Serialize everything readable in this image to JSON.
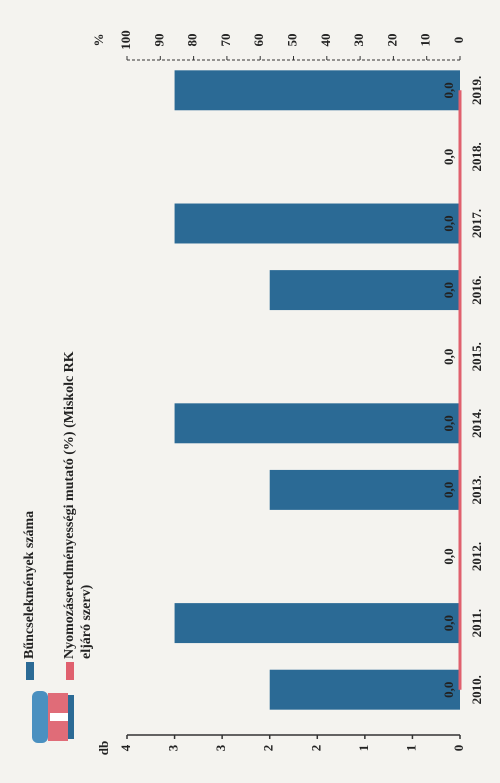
{
  "chart_data": {
    "type": "bar",
    "categories": [
      "2010.",
      "2011.",
      "2012.",
      "2013.",
      "2014.",
      "2015.",
      "2016.",
      "2017.",
      "2018.",
      "2019."
    ],
    "series": [
      {
        "name": "Bűncselekmények száma",
        "type": "bar",
        "axis": "y",
        "color": "#2b6a95",
        "values": [
          2,
          3,
          0,
          2,
          3,
          0,
          2,
          3,
          0,
          3
        ]
      },
      {
        "name": "Nyomozáseredményességi mutató (%) (Miskolc RK eljáró szerv)",
        "type": "line",
        "axis": "y2",
        "color": "#e0606e",
        "values": [
          0,
          0,
          0,
          0,
          0,
          0,
          0,
          0,
          0,
          0
        ],
        "value_labels": [
          "0,0",
          "0,0",
          "0,0",
          "0,0",
          "0,0",
          "0,0",
          "0,0",
          "0,0",
          "0,0",
          "0,0"
        ]
      }
    ],
    "y_label": "db",
    "ylim": [
      0,
      3.5
    ],
    "yticks": [
      {
        "value": 0,
        "label": "0"
      },
      {
        "value": 0.5,
        "label": "1"
      },
      {
        "value": 1,
        "label": "1"
      },
      {
        "value": 1.5,
        "label": "2"
      },
      {
        "value": 2,
        "label": "2"
      },
      {
        "value": 2.5,
        "label": "3"
      },
      {
        "value": 3,
        "label": "3"
      },
      {
        "value": 3.5,
        "label": "4"
      }
    ],
    "y2_label": "%",
    "y2lim": [
      0,
      100
    ],
    "y2ticks": [
      0,
      10,
      20,
      30,
      40,
      50,
      60,
      70,
      80,
      90,
      100
    ],
    "grid": false
  }
}
